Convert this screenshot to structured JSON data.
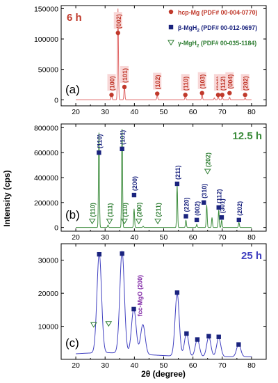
{
  "figure": {
    "ylabel": "Intensity (cps)",
    "xlabel": "2θ (degree)",
    "legend": [
      {
        "symbol": "circle",
        "color": "#c0392b",
        "name": "hcp-Mg",
        "pdf": "(PDF# 00-004-0770)"
      },
      {
        "symbol": "square",
        "color": "#1a237e",
        "name": "β-MgH",
        "sub": "2",
        "pdf": "(PDF# 00-012-0697)"
      },
      {
        "symbol": "triangle",
        "color": "#2e7d32",
        "name": "γ-MgH",
        "sub": "2",
        "pdf": "(PDF# 00-035-1184)"
      }
    ],
    "colors": {
      "panel_a": "#e06666",
      "panel_b": "#3c8c3c",
      "panel_c": "#4040c0",
      "mg": "#c0392b",
      "beta": "#1a237e",
      "gamma": "#2e7d32",
      "mgo": "#7b1fa2",
      "label_bg": "#f8d7d7"
    }
  },
  "chart_data": [
    {
      "type": "line",
      "panel_label": "(a)",
      "time_label": "6 h",
      "xlim": [
        15,
        85
      ],
      "ylim": [
        -10000,
        155000
      ],
      "xticks": [
        20,
        30,
        40,
        50,
        60,
        70,
        80
      ],
      "yticks": [
        0,
        50000,
        100000,
        150000
      ],
      "peaks": [
        {
          "x": 32.2,
          "y": 10000
        },
        {
          "x": 34.4,
          "y": 150000
        },
        {
          "x": 36.6,
          "y": 22000
        },
        {
          "x": 47.8,
          "y": 8000
        },
        {
          "x": 57.4,
          "y": 7000
        },
        {
          "x": 63.1,
          "y": 9000
        },
        {
          "x": 67.3,
          "y": 3000
        },
        {
          "x": 68.6,
          "y": 7000
        },
        {
          "x": 70.0,
          "y": 5000
        },
        {
          "x": 72.5,
          "y": 4000
        },
        {
          "x": 77.8,
          "y": 3000
        }
      ],
      "markers": [
        {
          "phase": "hcp-Mg",
          "x": 32.2,
          "y": 8000,
          "label": "(100)"
        },
        {
          "phase": "hcp-Mg",
          "x": 34.4,
          "y": 110000,
          "label": "(002)"
        },
        {
          "phase": "hcp-Mg",
          "x": 36.6,
          "y": 21000,
          "label": "(101)"
        },
        {
          "phase": "hcp-Mg",
          "x": 47.8,
          "y": 10000,
          "label": "(102)"
        },
        {
          "phase": "hcp-Mg",
          "x": 57.4,
          "y": 8000,
          "label": "(110)"
        },
        {
          "phase": "hcp-Mg",
          "x": 63.1,
          "y": 11000,
          "label": "(103)"
        },
        {
          "phase": "hcp-Mg",
          "x": 68.6,
          "y": 8000,
          "label": "(200)"
        },
        {
          "phase": "hcp-Mg",
          "x": 70.0,
          "y": 8000,
          "label": "(112)"
        },
        {
          "phase": "hcp-Mg",
          "x": 72.5,
          "y": 11000,
          "label": "(004)"
        },
        {
          "phase": "hcp-Mg",
          "x": 77.8,
          "y": 8000,
          "label": "(202)"
        }
      ]
    },
    {
      "type": "line",
      "panel_label": "(b)",
      "time_label": "12.5 h",
      "xlim": [
        15,
        85
      ],
      "ylim": [
        -30000,
        830000
      ],
      "xticks": [
        20,
        30,
        40,
        50,
        60,
        70,
        80
      ],
      "yticks": [
        0,
        200000,
        400000,
        600000,
        800000
      ],
      "peaks": [
        {
          "x": 27.9,
          "y": 760000
        },
        {
          "x": 31.0,
          "y": 20000
        },
        {
          "x": 35.8,
          "y": 790000
        },
        {
          "x": 39.9,
          "y": 150000
        },
        {
          "x": 43.0,
          "y": 10000
        },
        {
          "x": 54.6,
          "y": 340000
        },
        {
          "x": 57.6,
          "y": 60000
        },
        {
          "x": 61.3,
          "y": 25000
        },
        {
          "x": 64.7,
          "y": 180000
        },
        {
          "x": 66.5,
          "y": 80000
        },
        {
          "x": 68.8,
          "y": 140000
        },
        {
          "x": 69.8,
          "y": 60000
        },
        {
          "x": 75.7,
          "y": 40000
        }
      ],
      "markers": [
        {
          "phase": "gamma",
          "x": 25.6,
          "y": 50000,
          "label": "(110)"
        },
        {
          "phase": "beta",
          "x": 27.9,
          "y": 600000,
          "label": "(110)"
        },
        {
          "phase": "gamma",
          "x": 31.5,
          "y": 50000,
          "label": "(111)"
        },
        {
          "phase": "beta",
          "x": 35.8,
          "y": 630000,
          "label": "(101)"
        },
        {
          "phase": "gamma",
          "x": 36.6,
          "y": 50000,
          "label": "(110)"
        },
        {
          "phase": "beta",
          "x": 39.9,
          "y": 260000,
          "label": "(200)"
        },
        {
          "phase": "gamma",
          "x": 41.5,
          "y": 50000,
          "label": "(200)"
        },
        {
          "phase": "gamma",
          "x": 48.0,
          "y": 50000,
          "label": "(211)"
        },
        {
          "phase": "beta",
          "x": 54.6,
          "y": 350000,
          "label": "(211)"
        },
        {
          "phase": "beta",
          "x": 57.6,
          "y": 90000,
          "label": "(220)"
        },
        {
          "phase": "beta",
          "x": 61.3,
          "y": 60000,
          "label": "(002)"
        },
        {
          "phase": "beta",
          "x": 63.7,
          "y": 200000,
          "label": "(310)"
        },
        {
          "phase": "gamma",
          "x": 65.0,
          "y": 450000,
          "label": "(202)"
        },
        {
          "phase": "beta",
          "x": 68.8,
          "y": 160000,
          "label": "(112)"
        },
        {
          "phase": "beta",
          "x": 69.8,
          "y": 80000,
          "label": "(301)"
        },
        {
          "phase": "beta",
          "x": 75.7,
          "y": 60000,
          "label": "(202)"
        }
      ]
    },
    {
      "type": "line",
      "panel_label": "(c)",
      "time_label": "25 h",
      "annotation": "fcc-MgO (200)",
      "xlim": [
        15,
        85
      ],
      "ylim": [
        0,
        35000
      ],
      "xticks": [
        20,
        30,
        40,
        50,
        60,
        70,
        80
      ],
      "yticks": [
        10000,
        20000,
        30000
      ],
      "peaks": [
        {
          "x": 28.0,
          "y": 30200
        },
        {
          "x": 35.8,
          "y": 30800
        },
        {
          "x": 39.8,
          "y": 13700
        },
        {
          "x": 42.9,
          "y": 9000
        },
        {
          "x": 54.6,
          "y": 19000
        },
        {
          "x": 57.8,
          "y": 7000
        },
        {
          "x": 61.5,
          "y": 5200
        },
        {
          "x": 65.4,
          "y": 6000
        },
        {
          "x": 68.8,
          "y": 5700
        },
        {
          "x": 75.6,
          "y": 3800
        }
      ],
      "markers": [
        {
          "phase": "gamma",
          "x": 26.1,
          "y": 10500
        },
        {
          "phase": "beta",
          "x": 28.0,
          "y": 31800
        },
        {
          "phase": "gamma",
          "x": 31.2,
          "y": 10800
        },
        {
          "phase": "beta",
          "x": 35.8,
          "y": 32000
        },
        {
          "phase": "beta",
          "x": 39.8,
          "y": 15200
        },
        {
          "phase": "beta",
          "x": 54.6,
          "y": 20200
        },
        {
          "phase": "beta",
          "x": 57.8,
          "y": 7800
        },
        {
          "phase": "beta",
          "x": 61.5,
          "y": 6000
        },
        {
          "phase": "beta",
          "x": 65.4,
          "y": 7000
        },
        {
          "phase": "beta",
          "x": 68.8,
          "y": 6800
        },
        {
          "phase": "beta",
          "x": 75.6,
          "y": 4500
        }
      ]
    }
  ]
}
